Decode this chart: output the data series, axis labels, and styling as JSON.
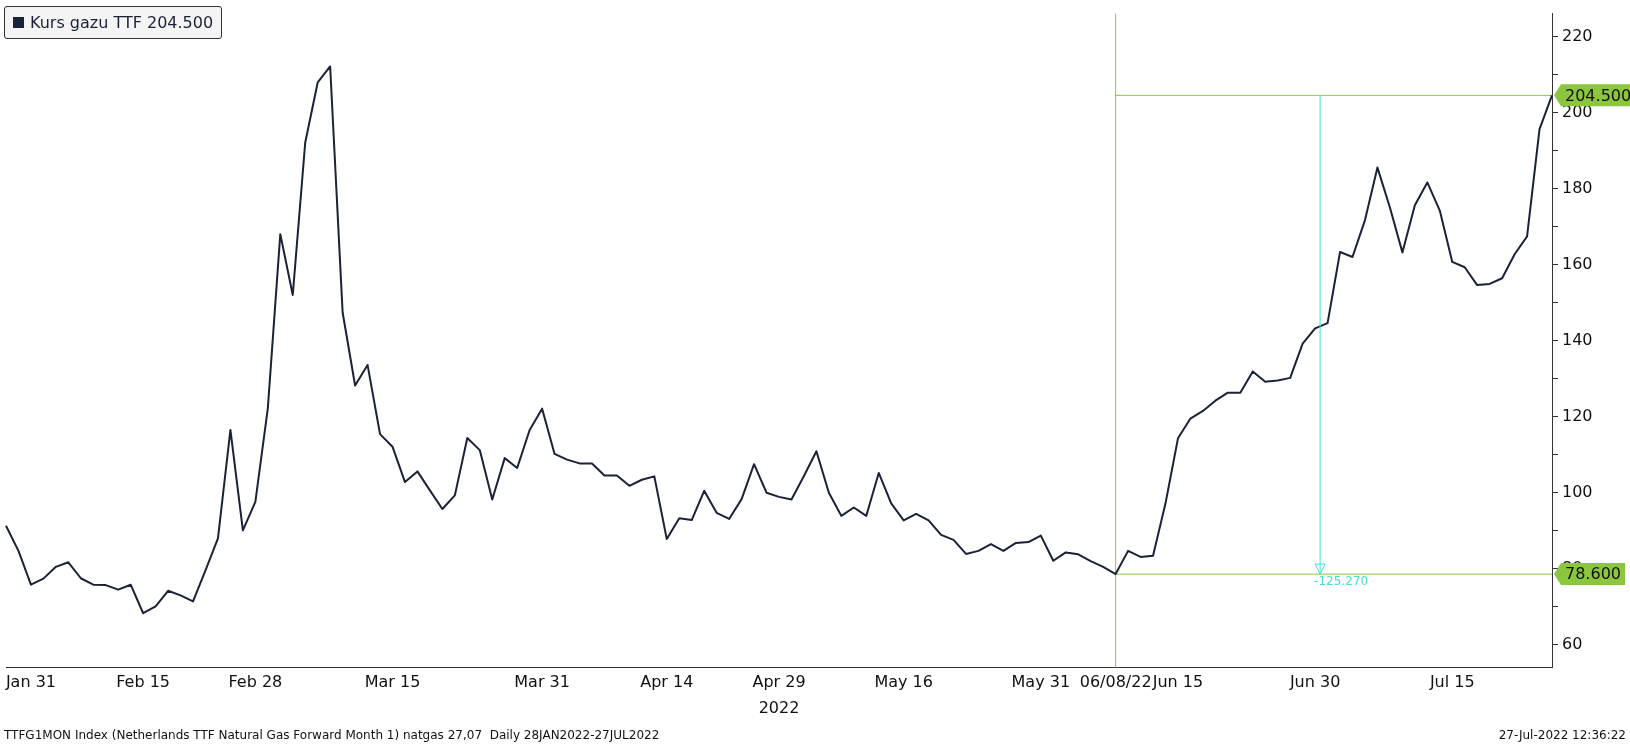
{
  "chart_data": {
    "type": "line",
    "xlabel": "2022",
    "categories": [
      null,
      null,
      "Jan 31",
      null,
      null,
      null,
      null,
      null,
      null,
      null,
      null,
      "Feb 15",
      null,
      null,
      null,
      null,
      null,
      null,
      null,
      null,
      "Feb 28",
      null,
      null,
      null,
      null,
      null,
      null,
      null,
      null,
      null,
      null,
      "Mar 15",
      null,
      null,
      null,
      null,
      null,
      null,
      null,
      null,
      null,
      null,
      null,
      "Mar 31",
      null,
      null,
      null,
      null,
      null,
      null,
      null,
      null,
      null,
      "Apr 14",
      null,
      null,
      null,
      null,
      null,
      null,
      null,
      null,
      "Apr 29",
      null,
      null,
      null,
      null,
      null,
      null,
      null,
      null,
      null,
      "May 16",
      null,
      null,
      null,
      null,
      null,
      null,
      null,
      null,
      null,
      null,
      "May 31",
      null,
      null,
      null,
      null,
      null,
      "06/08/22",
      null,
      null,
      null,
      null,
      "Jun 15",
      null,
      null,
      null,
      null,
      null,
      null,
      null,
      null,
      null,
      null,
      "Jun 30",
      null,
      null,
      null,
      null,
      null,
      null,
      null,
      null,
      null,
      null,
      "Jul 15",
      null,
      null,
      null,
      null,
      null,
      null,
      null,
      null
    ],
    "series": [
      {
        "name": "Kurs gazu TTF 204.500",
        "color": "#1a2238",
        "values": [
          91.3,
          84.7,
          75.8,
          77.4,
          80.5,
          81.7,
          77.5,
          75.8,
          75.7,
          74.5,
          75.8,
          68.3,
          70.1,
          74.2,
          73.0,
          71.4,
          79.6,
          88.0,
          116.5,
          90.1,
          97.6,
          122.2,
          168.0,
          152.0,
          192.1,
          207.9,
          212.1,
          147.4,
          128.2,
          133.6,
          115.4,
          112.1,
          102.8,
          105.6,
          100.6,
          95.7,
          99.3,
          114.4,
          111.2,
          98.2,
          109.1,
          106.5,
          116.5,
          122.1,
          110.2,
          108.7,
          107.7,
          107.7,
          104.5,
          104.5,
          101.8,
          103.4,
          104.3,
          87.8,
          93.3,
          92.8,
          100.5,
          94.7,
          93.1,
          98.3,
          107.5,
          100.0,
          98.9,
          98.2,
          104.4,
          110.9,
          100.0,
          93.9,
          96.1,
          93.9,
          105.2,
          97.2,
          92.7,
          94.4,
          92.7,
          88.9,
          87.6,
          83.9,
          84.7,
          86.5,
          84.7,
          86.8,
          87.0,
          88.7,
          82.1,
          84.3,
          83.8,
          82.0,
          80.5,
          78.6,
          84.7,
          83.1,
          83.4,
          97.2,
          114.3,
          119.5,
          121.5,
          124.2,
          126.3,
          126.3,
          131.9,
          129.2,
          129.5,
          130.2,
          139.2,
          143.2,
          144.6,
          163.3,
          162.0,
          171.7,
          185.5,
          175.0,
          163.2,
          175.6,
          181.6,
          174.2,
          160.7,
          159.3,
          154.6,
          154.9,
          156.4,
          162.7,
          167.4,
          195.6,
          204.5
        ]
      }
    ],
    "ylim": [
      54,
      226
    ],
    "yticks": [
      60,
      {
        "value": 70,
        "label": null
      },
      80,
      {
        "value": 90,
        "label": null
      },
      100,
      {
        "value": 110,
        "label": null
      },
      120,
      {
        "value": 130,
        "label": null
      },
      140,
      {
        "value": 150,
        "label": null
      },
      160,
      {
        "value": 170,
        "label": null
      },
      180,
      {
        "value": 190,
        "label": null
      },
      200,
      {
        "value": 210,
        "label": null
      },
      220
    ],
    "grid": false,
    "legend": "top left",
    "ref_lines": [
      {
        "axis": "x",
        "value": "06/08/22",
        "color": "#8cc63f"
      },
      {
        "axis": "y",
        "value": 204.5,
        "label": "204.500",
        "color": "#8cc63f"
      },
      {
        "axis": "y",
        "value": 78.6,
        "label": "78.600",
        "color": "#8cc63f"
      }
    ],
    "annotations": [
      {
        "text": "-125.270",
        "y": 78.6
      },
      "TTFG1MON Index (Netherlands TTF Natural Gas Forward Month 1) natgas 27,07  Daily 28JAN2022-27JUL2022",
      "27-Jul-2022 12:36:22"
    ]
  }
}
